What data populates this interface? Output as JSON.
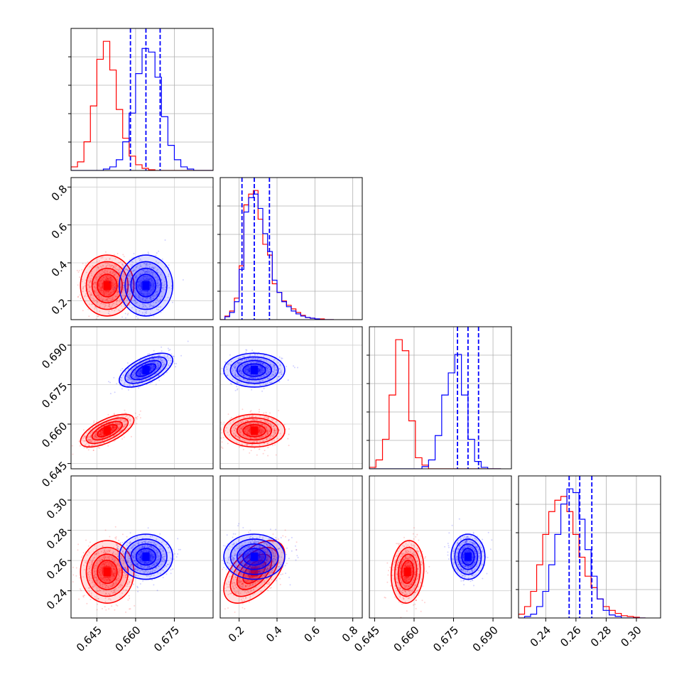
{
  "chart_data": {
    "type": "corner",
    "grid": true,
    "colors": {
      "red": "#ff0000",
      "blue": "#0000ff"
    },
    "params": [
      {
        "range": [
          0.635,
          0.69
        ],
        "ticks": [
          0.645,
          0.66,
          0.675
        ],
        "tick_labels": [
          "0.645",
          "0.660",
          "0.675"
        ]
      },
      {
        "range": [
          0.1,
          0.85
        ],
        "ticks": [
          0.2,
          0.4,
          0.6,
          0.8
        ],
        "tick_labels": [
          "0.2",
          "0.4",
          "0.6",
          "0.8"
        ]
      },
      {
        "range": [
          0.643,
          0.697
        ],
        "ticks": [
          0.645,
          0.66,
          0.675,
          0.69
        ],
        "tick_labels": [
          "0.645",
          "0.660",
          "0.675",
          "0.690"
        ]
      },
      {
        "range": [
          0.222,
          0.316
        ],
        "ticks": [
          0.24,
          0.26,
          0.28,
          0.3
        ],
        "tick_labels": [
          "0.24",
          "0.26",
          "0.28",
          "0.30"
        ]
      }
    ],
    "series": [
      {
        "color": "red",
        "means": [
          0.649,
          0.28,
          0.6575,
          0.2525
        ],
        "sds": [
          0.0045,
          0.07,
          0.0027,
          0.009
        ],
        "corr": {
          "0-1": 0.0,
          "0-2": 0.65,
          "0-3": 0.0,
          "1-2": 0.0,
          "1-3": 0.55,
          "2-3": 0.1
        }
      },
      {
        "color": "blue",
        "means": [
          0.664,
          0.28,
          0.6805,
          0.2625
        ],
        "sds": [
          0.0045,
          0.07,
          0.0028,
          0.0065
        ],
        "corr": {
          "0-1": 0.0,
          "0-2": 0.6,
          "0-3": 0.0,
          "1-2": 0.0,
          "1-3": 0.0,
          "2-3": 0.0
        }
      }
    ],
    "quantiles_blue": [
      [
        0.658,
        0.664,
        0.6695
      ],
      [
        0.215,
        0.28,
        0.36
      ],
      [
        0.6765,
        0.6805,
        0.6845
      ],
      [
        0.2555,
        0.2625,
        0.2705
      ]
    ],
    "histograms": [
      {
        "bin_edges": [
          0.635,
          0.6375,
          0.64,
          0.6425,
          0.645,
          0.6475,
          0.65,
          0.6525,
          0.655,
          0.6575,
          0.66,
          0.6625,
          0.665,
          0.6675,
          0.67,
          0.6725,
          0.675,
          0.6775,
          0.68,
          0.6825,
          0.685,
          0.6875,
          0.69
        ],
        "red": [
          5,
          12,
          40,
          90,
          155,
          180,
          140,
          85,
          45,
          20,
          8,
          3,
          1,
          0,
          0,
          0,
          0,
          0,
          0,
          0,
          0,
          0
        ],
        "blue": [
          0,
          0,
          0,
          0,
          0,
          2,
          5,
          15,
          40,
          80,
          135,
          170,
          165,
          130,
          75,
          35,
          15,
          5,
          2,
          0,
          0,
          0
        ]
      },
      {
        "bin_edges": [
          0.1,
          0.125,
          0.15,
          0.175,
          0.2,
          0.225,
          0.25,
          0.275,
          0.3,
          0.325,
          0.35,
          0.375,
          0.4,
          0.425,
          0.45,
          0.475,
          0.5,
          0.525,
          0.55,
          0.575,
          0.6,
          0.625,
          0.65,
          0.675,
          0.7
        ],
        "red": [
          0,
          5,
          12,
          30,
          75,
          160,
          175,
          180,
          140,
          105,
          90,
          50,
          38,
          26,
          20,
          15,
          10,
          6,
          3,
          2,
          1,
          1,
          0,
          0
        ],
        "blue": [
          0,
          4,
          10,
          25,
          70,
          150,
          170,
          175,
          155,
          120,
          95,
          55,
          38,
          25,
          18,
          12,
          8,
          5,
          3,
          2,
          1,
          0,
          0,
          0
        ]
      },
      {
        "bin_edges": [
          0.643,
          0.6455,
          0.648,
          0.6505,
          0.653,
          0.6555,
          0.658,
          0.6605,
          0.663,
          0.6655,
          0.668,
          0.6705,
          0.673,
          0.6755,
          0.678,
          0.6805,
          0.683,
          0.6855,
          0.688,
          0.6905,
          0.693
        ],
        "red": [
          2,
          12,
          40,
          100,
          175,
          160,
          65,
          15,
          5,
          0,
          0,
          0,
          0,
          0,
          0,
          0,
          0,
          0,
          0,
          0
        ],
        "blue": [
          0,
          0,
          0,
          0,
          0,
          0,
          0,
          0,
          3,
          12,
          45,
          100,
          130,
          155,
          100,
          40,
          10,
          2,
          0,
          0
        ]
      },
      {
        "bin_edges": [
          0.222,
          0.226,
          0.23,
          0.234,
          0.238,
          0.242,
          0.246,
          0.25,
          0.254,
          0.258,
          0.262,
          0.266,
          0.27,
          0.274,
          0.278,
          0.282,
          0.286,
          0.29,
          0.294,
          0.298,
          0.302,
          0.306
        ],
        "red": [
          5,
          15,
          35,
          70,
          110,
          140,
          155,
          160,
          140,
          110,
          80,
          55,
          40,
          25,
          15,
          10,
          6,
          3,
          2,
          1,
          0
        ],
        "blue": [
          0,
          2,
          5,
          15,
          35,
          70,
          110,
          150,
          170,
          165,
          130,
          90,
          55,
          25,
          10,
          4,
          2,
          0,
          0,
          0,
          0
        ]
      }
    ]
  }
}
